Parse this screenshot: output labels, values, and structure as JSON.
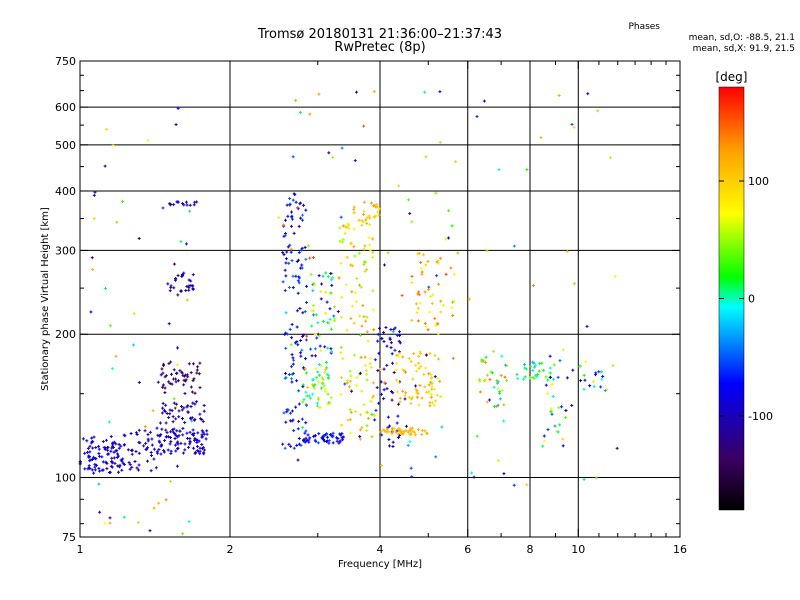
{
  "title_line1": "Tromsø 20180131 21:36:00–21:37:43",
  "title_line2": "RwPretec (8p)",
  "stats": {
    "title": "Phases",
    "line_o": "mean, sd,O: -88.5, 21.1",
    "line_x": "mean, sd,X:  91.9, 21.5"
  },
  "chart_data": {
    "type": "scatter",
    "xlabel": "Frequency [MHz]",
    "ylabel": "Stationary phase Virtual Height [km]",
    "xscale": "log",
    "yscale": "log",
    "xlim": [
      1,
      16
    ],
    "ylim": [
      75,
      750
    ],
    "xticks": [
      1,
      2,
      4,
      6,
      8,
      10,
      16
    ],
    "xtick_labels": [
      "1",
      "2",
      "4",
      "6",
      "8",
      "10",
      "16"
    ],
    "xgrid": [
      2,
      4,
      6,
      8,
      10
    ],
    "yticks": [
      75,
      100,
      200,
      300,
      400,
      500,
      600,
      750
    ],
    "ytick_labels": [
      "75",
      "100",
      "200",
      "300",
      "400",
      "500",
      "600",
      "750"
    ],
    "ygrid": [
      100,
      200,
      300,
      400,
      500,
      600
    ],
    "grid": true,
    "colorbar": {
      "label": "[deg]",
      "range": [
        -180,
        180
      ],
      "ticks": [
        -100,
        0,
        100
      ],
      "tick_labels": [
        "-100",
        "0",
        "100"
      ],
      "colors": [
        "#000000",
        "#3a0060",
        "#0000ff",
        "#00aaff",
        "#00ffff",
        "#00ff00",
        "#ffff00",
        "#ffa000",
        "#ff0000"
      ]
    },
    "clusters": [
      {
        "f": [
          1.0,
          1.2
        ],
        "h": [
          102,
          122
        ],
        "phase": [
          -115,
          -70
        ],
        "n": 90
      },
      {
        "f": [
          1.2,
          1.45
        ],
        "h": [
          103,
          128
        ],
        "phase": [
          -115,
          -75
        ],
        "n": 60
      },
      {
        "f": [
          1.45,
          1.8
        ],
        "h": [
          112,
          127
        ],
        "phase": [
          -115,
          -80
        ],
        "n": 90
      },
      {
        "f": [
          1.45,
          1.8
        ],
        "h": [
          130,
          145
        ],
        "phase": [
          -120,
          -85
        ],
        "n": 45
      },
      {
        "f": [
          1.45,
          1.75
        ],
        "h": [
          150,
          175
        ],
        "phase": [
          -150,
          -110
        ],
        "n": 50
      },
      {
        "f": [
          1.5,
          1.7
        ],
        "h": [
          240,
          270
        ],
        "phase": [
          -120,
          -85
        ],
        "n": 30
      },
      {
        "f": [
          1.5,
          1.75
        ],
        "h": [
          370,
          380
        ],
        "phase": [
          -110,
          -85
        ],
        "n": 15
      },
      {
        "f": [
          1.05,
          1.7
        ],
        "h": [
          75,
          620
        ],
        "phase": [
          -140,
          140
        ],
        "n": 55
      },
      {
        "f": [
          2.55,
          2.85
        ],
        "h": [
          115,
          400
        ],
        "phase": [
          -110,
          -40
        ],
        "n": 130
      },
      {
        "f": [
          2.8,
          3.4
        ],
        "h": [
          118,
          124
        ],
        "phase": [
          -110,
          -50
        ],
        "n": 55
      },
      {
        "f": [
          2.8,
          3.2
        ],
        "h": [
          140,
          175
        ],
        "phase": [
          -20,
          110
        ],
        "n": 50
      },
      {
        "f": [
          2.9,
          3.3
        ],
        "h": [
          180,
          270
        ],
        "phase": [
          -120,
          90
        ],
        "n": 55
      },
      {
        "f": [
          3.3,
          3.9
        ],
        "h": [
          120,
          350
        ],
        "phase": [
          40,
          130
        ],
        "n": 110
      },
      {
        "f": [
          3.5,
          4.0
        ],
        "h": [
          330,
          380
        ],
        "phase": [
          90,
          130
        ],
        "n": 25
      },
      {
        "f": [
          3.9,
          4.4
        ],
        "h": [
          115,
          210
        ],
        "phase": [
          -110,
          -60
        ],
        "n": 60
      },
      {
        "f": [
          4.0,
          5.0
        ],
        "h": [
          123,
          127
        ],
        "phase": [
          100,
          125
        ],
        "n": 45
      },
      {
        "f": [
          4.3,
          5.3
        ],
        "h": [
          140,
          185
        ],
        "phase": [
          80,
          130
        ],
        "n": 70
      },
      {
        "f": [
          4.6,
          5.7
        ],
        "h": [
          200,
          300
        ],
        "phase": [
          60,
          150
        ],
        "n": 45
      },
      {
        "f": [
          2.5,
          5.8
        ],
        "h": [
          100,
          650
        ],
        "phase": [
          -140,
          160
        ],
        "n": 90
      },
      {
        "f": [
          6.3,
          7.2
        ],
        "h": [
          140,
          180
        ],
        "phase": [
          -40,
          150
        ],
        "n": 35
      },
      {
        "f": [
          7.5,
          9.0
        ],
        "h": [
          160,
          175
        ],
        "phase": [
          -30,
          40
        ],
        "n": 30
      },
      {
        "f": [
          8.5,
          9.5
        ],
        "h": [
          115,
          190
        ],
        "phase": [
          -100,
          100
        ],
        "n": 25
      },
      {
        "f": [
          10.0,
          11.5
        ],
        "h": [
          150,
          175
        ],
        "phase": [
          -110,
          130
        ],
        "n": 20
      },
      {
        "f": [
          6.0,
          12.0
        ],
        "h": [
          95,
          650
        ],
        "phase": [
          -130,
          140
        ],
        "n": 40
      }
    ]
  },
  "svg_labels": {
    "colorbar_label": "[deg]"
  }
}
